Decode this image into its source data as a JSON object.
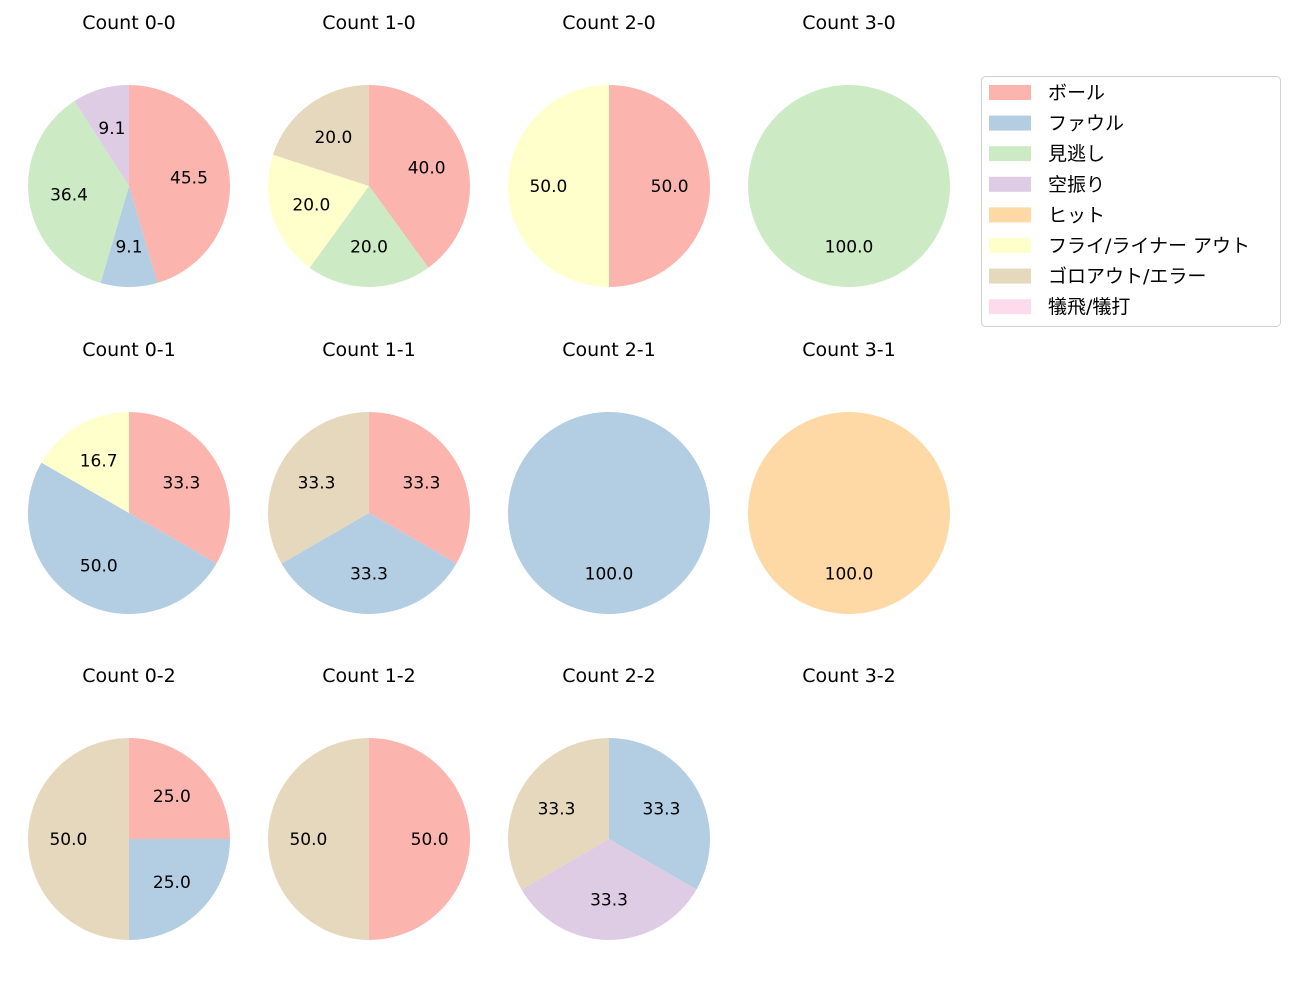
{
  "chart_data": {
    "type": "pie",
    "start_angle_deg": 90,
    "direction": "clockwise",
    "legend": {
      "placement": "top-right",
      "entries": [
        "ボール",
        "ファウル",
        "見逃し",
        "空振り",
        "ヒット",
        "フライ/ライナー アウト",
        "ゴロアウト/エラー",
        "犠飛/犠打"
      ]
    },
    "colors": [
      "#fbb4ae",
      "#b3cde3",
      "#ccebc5",
      "#decbe4",
      "#fed9a6",
      "#ffffcc",
      "#e5d8bd",
      "#fddaec"
    ],
    "charts": [
      {
        "title": "Count 0-0",
        "values": [
          45.5,
          9.1,
          36.4,
          9.1,
          0,
          0,
          0,
          0
        ]
      },
      {
        "title": "Count 1-0",
        "values": [
          40.0,
          0,
          20.0,
          0,
          0,
          20.0,
          20.0,
          0
        ]
      },
      {
        "title": "Count 2-0",
        "values": [
          50.0,
          0,
          0,
          0,
          0,
          50.0,
          0,
          0
        ]
      },
      {
        "title": "Count 3-0",
        "values": [
          0,
          0,
          100.0,
          0,
          0,
          0,
          0,
          0
        ]
      },
      {
        "title": "Count 0-1",
        "values": [
          33.3,
          50.0,
          0,
          0,
          0,
          16.7,
          0,
          0
        ]
      },
      {
        "title": "Count 1-1",
        "values": [
          33.3,
          33.3,
          0,
          0,
          0,
          0,
          33.3,
          0
        ]
      },
      {
        "title": "Count 2-1",
        "values": [
          0,
          100.0,
          0,
          0,
          0,
          0,
          0,
          0
        ]
      },
      {
        "title": "Count 3-1",
        "values": [
          0,
          0,
          0,
          0,
          100.0,
          0,
          0,
          0
        ]
      },
      {
        "title": "Count 0-2",
        "values": [
          25.0,
          25.0,
          0,
          0,
          0,
          0,
          50.0,
          0
        ]
      },
      {
        "title": "Count 1-2",
        "values": [
          50.0,
          0,
          0,
          0,
          0,
          0,
          50.0,
          0
        ]
      },
      {
        "title": "Count 2-2",
        "values": [
          0,
          33.3,
          0,
          33.3,
          0,
          0,
          33.3,
          0
        ]
      },
      {
        "title": "Count 3-2",
        "values": []
      }
    ]
  }
}
